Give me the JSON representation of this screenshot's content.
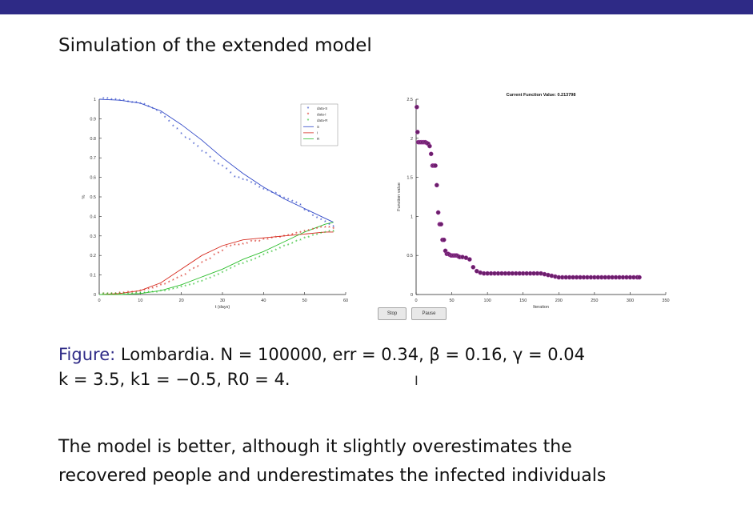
{
  "slide": {
    "title": "Simulation of the extended model",
    "caption_label": "Figure:",
    "caption_line1": "Lombardia. N = 100000, err = 0.34, β = 0.16, γ = 0.04",
    "caption_line2": "k = 3.5, k1 = −0.5, R0 = 4.",
    "conclusion_line1": "The model is better, although it slightly overestimates the",
    "conclusion_line2": "recovered people and underestimates the infected individuals",
    "buttons": {
      "stop": "Stop",
      "pause": "Pause"
    },
    "colors": {
      "bar": "#2e2a86",
      "s": "#2f47c7",
      "i": "#d62a1e",
      "r": "#2fbf2f",
      "fv": "#6a1f6a"
    }
  },
  "chart_data": [
    {
      "type": "scatter",
      "xlabel": "t (days)",
      "ylabel": "%",
      "xlim": [
        0,
        60
      ],
      "ylim": [
        0,
        1
      ],
      "xticks": [
        0,
        10,
        20,
        30,
        40,
        50,
        60
      ],
      "yticks": [
        0,
        0.1,
        0.2,
        0.3,
        0.4,
        0.5,
        0.6,
        0.7,
        0.8,
        0.9,
        1
      ],
      "legend": {
        "placement": "top-right",
        "entries": [
          "data-S",
          "data-I",
          "data-R",
          "S",
          "I",
          "R"
        ]
      },
      "series": [
        {
          "name": "data-S",
          "kind": "points",
          "color": "#2f47c7",
          "x": [
            1,
            2,
            3,
            4,
            5,
            6,
            7,
            8,
            9,
            10,
            11,
            12,
            13,
            14,
            15,
            16,
            17,
            18,
            19,
            20,
            21,
            22,
            23,
            24,
            25,
            26,
            27,
            28,
            29,
            30,
            31,
            32,
            33,
            34,
            35,
            36,
            37,
            38,
            39,
            40,
            41,
            42,
            43,
            44,
            45,
            46,
            47,
            48,
            49,
            50,
            51,
            52,
            53,
            54,
            55,
            56,
            57
          ],
          "y": [
            1,
            1,
            0.995,
            0.995,
            0.99,
            0.99,
            0.985,
            0.98,
            0.98,
            0.975,
            0.97,
            0.96,
            0.95,
            0.94,
            0.925,
            0.905,
            0.885,
            0.86,
            0.845,
            0.82,
            0.8,
            0.79,
            0.77,
            0.755,
            0.73,
            0.72,
            0.7,
            0.68,
            0.665,
            0.655,
            0.64,
            0.62,
            0.6,
            0.595,
            0.585,
            0.58,
            0.57,
            0.56,
            0.545,
            0.535,
            0.53,
            0.52,
            0.515,
            0.5,
            0.49,
            0.485,
            0.475,
            0.465,
            0.455,
            0.43,
            0.42,
            0.4,
            0.39,
            0.38,
            0.37,
            0.355,
            0.345
          ]
        },
        {
          "name": "data-I",
          "kind": "points",
          "color": "#d62a1e",
          "x": [
            1,
            2,
            3,
            4,
            5,
            6,
            7,
            8,
            9,
            10,
            11,
            12,
            13,
            14,
            15,
            16,
            17,
            18,
            19,
            20,
            21,
            22,
            23,
            24,
            25,
            26,
            27,
            28,
            29,
            30,
            31,
            32,
            33,
            34,
            35,
            36,
            37,
            38,
            39,
            40,
            41,
            42,
            43,
            44,
            45,
            46,
            47,
            48,
            49,
            50,
            51,
            52,
            53,
            54,
            55,
            56,
            57
          ],
          "y": [
            0,
            0,
            0,
            0,
            0.005,
            0.005,
            0.01,
            0.01,
            0.01,
            0.015,
            0.02,
            0.025,
            0.03,
            0.035,
            0.045,
            0.05,
            0.06,
            0.07,
            0.08,
            0.09,
            0.1,
            0.12,
            0.13,
            0.14,
            0.16,
            0.17,
            0.18,
            0.2,
            0.21,
            0.22,
            0.24,
            0.245,
            0.25,
            0.25,
            0.255,
            0.26,
            0.27,
            0.27,
            0.27,
            0.28,
            0.28,
            0.285,
            0.29,
            0.29,
            0.295,
            0.3,
            0.305,
            0.31,
            0.315,
            0.32,
            0.325,
            0.33,
            0.335,
            0.34,
            0.34,
            0.34,
            0.335
          ]
        },
        {
          "name": "data-R",
          "kind": "points",
          "color": "#2fbf2f",
          "x": [
            1,
            2,
            3,
            4,
            5,
            6,
            7,
            8,
            9,
            10,
            11,
            12,
            13,
            14,
            15,
            16,
            17,
            18,
            19,
            20,
            21,
            22,
            23,
            24,
            25,
            26,
            27,
            28,
            29,
            30,
            31,
            32,
            33,
            34,
            35,
            36,
            37,
            38,
            39,
            40,
            41,
            42,
            43,
            44,
            45,
            46,
            47,
            48,
            49,
            50,
            51,
            52,
            53,
            54,
            55,
            56,
            57
          ],
          "y": [
            0,
            0,
            0,
            0,
            0,
            0,
            0,
            0,
            0.005,
            0.005,
            0.005,
            0.01,
            0.01,
            0.01,
            0.015,
            0.015,
            0.02,
            0.025,
            0.03,
            0.035,
            0.04,
            0.045,
            0.05,
            0.06,
            0.065,
            0.075,
            0.08,
            0.09,
            0.1,
            0.11,
            0.12,
            0.13,
            0.14,
            0.15,
            0.155,
            0.165,
            0.17,
            0.18,
            0.19,
            0.2,
            0.21,
            0.215,
            0.225,
            0.235,
            0.245,
            0.25,
            0.26,
            0.27,
            0.275,
            0.285,
            0.29,
            0.3,
            0.305,
            0.31,
            0.315,
            0.32,
            0.32
          ]
        },
        {
          "name": "S",
          "kind": "line",
          "color": "#2f47c7",
          "x": [
            0,
            5,
            10,
            15,
            20,
            25,
            30,
            35,
            40,
            45,
            50,
            55,
            57
          ],
          "y": [
            1,
            0.995,
            0.98,
            0.94,
            0.87,
            0.79,
            0.7,
            0.62,
            0.55,
            0.49,
            0.44,
            0.39,
            0.37
          ]
        },
        {
          "name": "I",
          "kind": "line",
          "color": "#d62a1e",
          "x": [
            0,
            5,
            10,
            15,
            20,
            25,
            30,
            35,
            40,
            45,
            50,
            55,
            57
          ],
          "y": [
            0,
            0.005,
            0.02,
            0.06,
            0.13,
            0.2,
            0.25,
            0.28,
            0.29,
            0.3,
            0.31,
            0.32,
            0.32
          ]
        },
        {
          "name": "R",
          "kind": "line",
          "color": "#2fbf2f",
          "x": [
            0,
            5,
            10,
            15,
            20,
            25,
            30,
            35,
            40,
            45,
            50,
            55,
            57
          ],
          "y": [
            0,
            0,
            0.005,
            0.02,
            0.05,
            0.09,
            0.13,
            0.18,
            0.22,
            0.27,
            0.32,
            0.36,
            0.37
          ]
        }
      ]
    },
    {
      "type": "scatter",
      "title": "Current Function Value: 0.213798",
      "xlabel": "Iteration",
      "ylabel": "Function value",
      "xlim": [
        0,
        350
      ],
      "ylim": [
        0,
        2.5
      ],
      "xticks": [
        0,
        50,
        100,
        150,
        200,
        250,
        300,
        350
      ],
      "yticks": [
        0,
        0.5,
        1,
        1.5,
        2,
        2.5
      ],
      "series": [
        {
          "name": "",
          "kind": "points",
          "color": "#6a1f6a",
          "x": [
            1,
            2,
            3,
            5,
            7,
            9,
            11,
            13,
            15,
            17,
            19,
            21,
            23,
            25,
            27,
            29,
            31,
            33,
            35,
            37,
            39,
            41,
            43,
            45,
            47,
            49,
            51,
            53,
            55,
            57,
            59,
            61,
            65,
            70,
            75,
            80,
            85,
            90,
            95,
            100,
            105,
            110,
            115,
            120,
            125,
            130,
            135,
            140,
            145,
            150,
            155,
            160,
            165,
            170,
            175,
            180,
            185,
            190,
            195,
            200,
            205,
            210,
            215,
            220,
            225,
            230,
            235,
            240,
            245,
            250,
            255,
            260,
            265,
            270,
            275,
            280,
            285,
            290,
            295,
            300,
            305,
            310,
            313
          ],
          "y": [
            2.4,
            2.08,
            1.95,
            1.95,
            1.95,
            1.95,
            1.95,
            1.95,
            1.94,
            1.93,
            1.9,
            1.8,
            1.65,
            1.65,
            1.65,
            1.4,
            1.05,
            0.9,
            0.9,
            0.7,
            0.7,
            0.56,
            0.52,
            0.52,
            0.51,
            0.5,
            0.5,
            0.5,
            0.5,
            0.5,
            0.49,
            0.48,
            0.48,
            0.47,
            0.45,
            0.35,
            0.3,
            0.28,
            0.27,
            0.27,
            0.27,
            0.27,
            0.27,
            0.27,
            0.27,
            0.27,
            0.27,
            0.27,
            0.27,
            0.27,
            0.27,
            0.27,
            0.27,
            0.27,
            0.27,
            0.26,
            0.25,
            0.24,
            0.23,
            0.22,
            0.22,
            0.22,
            0.22,
            0.22,
            0.22,
            0.22,
            0.22,
            0.22,
            0.22,
            0.22,
            0.22,
            0.22,
            0.22,
            0.22,
            0.22,
            0.22,
            0.22,
            0.22,
            0.22,
            0.22,
            0.22,
            0.22,
            0.22
          ]
        }
      ]
    }
  ]
}
